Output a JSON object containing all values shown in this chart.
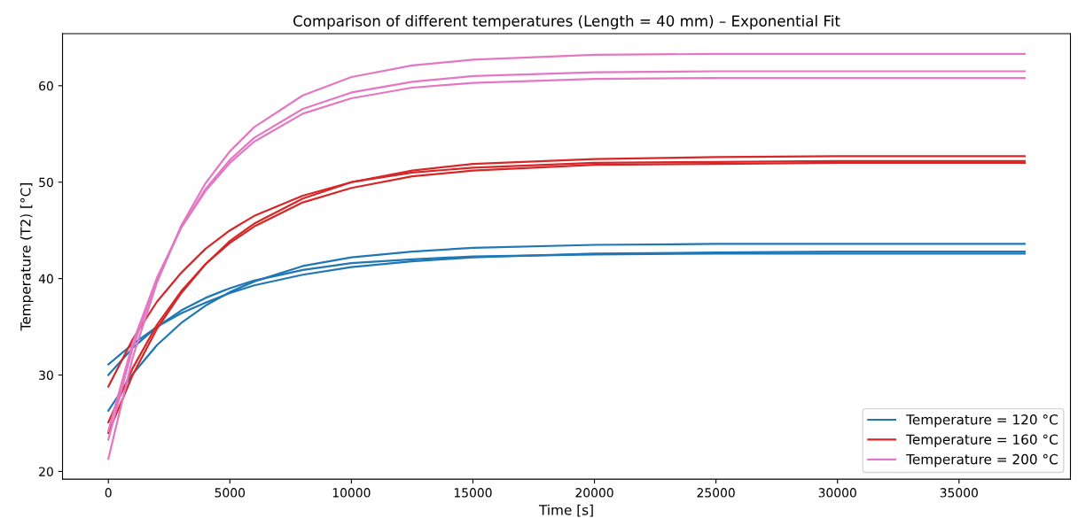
{
  "chart_data": {
    "type": "line",
    "title": "Comparison of different temperatures (Length = 40 mm) – Exponential Fit",
    "xlabel": "Time [s]",
    "ylabel": "Temperature (T2) [°C]",
    "x": [
      0,
      1000,
      2000,
      3000,
      4000,
      5000,
      6000,
      8000,
      10000,
      12500,
      15000,
      20000,
      25000,
      30000,
      37700
    ],
    "series": [
      {
        "name": "Temperature = 120 °C",
        "color": "#1f77b4",
        "values": [
          26.3,
          30.1,
          33.1,
          35.4,
          37.2,
          38.6,
          39.7,
          41.3,
          42.2,
          42.8,
          43.2,
          43.5,
          43.6,
          43.6,
          43.6
        ]
      },
      {
        "color": "#1f77b4",
        "values": [
          31.1,
          33.2,
          35.0,
          36.4,
          37.5,
          38.5,
          39.3,
          40.4,
          41.2,
          41.8,
          42.2,
          42.6,
          42.7,
          42.8,
          42.8
        ]
      },
      {
        "color": "#1f77b4",
        "values": [
          30.0,
          32.8,
          35.0,
          36.7,
          38.0,
          39.0,
          39.8,
          40.9,
          41.6,
          42.0,
          42.3,
          42.5,
          42.6,
          42.6,
          42.6
        ]
      },
      {
        "name": "Temperature = 160 °C",
        "color": "#d62728",
        "values": [
          24.0,
          30.0,
          34.8,
          38.5,
          41.5,
          43.9,
          45.7,
          48.3,
          50.0,
          51.2,
          51.9,
          52.4,
          52.6,
          52.7,
          52.7
        ]
      },
      {
        "color": "#d62728",
        "values": [
          28.8,
          33.7,
          37.6,
          40.6,
          43.1,
          45.0,
          46.5,
          48.6,
          50.0,
          51.0,
          51.5,
          52.0,
          52.1,
          52.2,
          52.2
        ]
      },
      {
        "color": "#d62728",
        "values": [
          25.1,
          30.7,
          35.2,
          38.7,
          41.5,
          43.7,
          45.4,
          47.9,
          49.4,
          50.6,
          51.2,
          51.8,
          51.9,
          52.0,
          52.0
        ]
      },
      {
        "name": "Temperature = 200 °C",
        "color": "#e377c2",
        "values": [
          21.3,
          31.8,
          39.6,
          45.5,
          49.9,
          53.2,
          55.7,
          59.0,
          60.9,
          62.1,
          62.7,
          63.2,
          63.3,
          63.3,
          63.3
        ]
      },
      {
        "color": "#e377c2",
        "values": [
          23.3,
          32.8,
          39.9,
          45.3,
          49.3,
          52.3,
          54.6,
          57.6,
          59.3,
          60.4,
          61.0,
          61.4,
          61.5,
          61.5,
          61.5
        ]
      },
      {
        "color": "#e377c2",
        "values": [
          24.2,
          33.3,
          40.1,
          45.3,
          49.1,
          52.0,
          54.2,
          57.1,
          58.7,
          59.8,
          60.3,
          60.7,
          60.8,
          60.8,
          60.8
        ]
      }
    ],
    "xlim": [
      -1885,
      39585
    ],
    "ylim": [
      19.2,
      65.4
    ],
    "xticks": [
      0,
      5000,
      10000,
      15000,
      20000,
      25000,
      30000,
      35000
    ],
    "yticks": [
      20,
      30,
      40,
      50,
      60
    ],
    "grid": false,
    "legend": "lower right",
    "marker": "none",
    "line_style": "solid"
  }
}
